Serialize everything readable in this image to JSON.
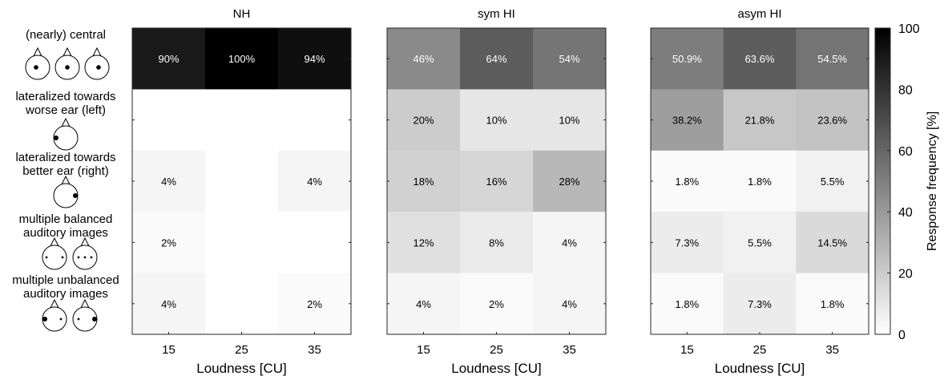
{
  "chart_data": {
    "type": "heatmap",
    "x_categories": [
      "15",
      "25",
      "35"
    ],
    "xlabel": "Loudness [CU]",
    "row_labels": [
      [
        "(nearly) central"
      ],
      [
        "lateralized towards",
        "worse ear (left)"
      ],
      [
        "lateralized towards",
        "better ear (right)"
      ],
      [
        "multiple balanced",
        "auditory images"
      ],
      [
        "multiple unbalanced",
        "auditory images"
      ]
    ],
    "row_icons": [
      "central-head-icons",
      "left-head-icon",
      "right-head-icon",
      "balanced-multiple-head-icons",
      "unbalanced-multiple-head-icons"
    ],
    "panels": [
      {
        "title": "NH",
        "values": [
          [
            90,
            100,
            94
          ],
          [
            0,
            0,
            0
          ],
          [
            4,
            0,
            4
          ],
          [
            2,
            0,
            0
          ],
          [
            4,
            0,
            2
          ]
        ],
        "labels": [
          [
            "90%",
            "100%",
            "94%"
          ],
          [
            "",
            "",
            ""
          ],
          [
            "4%",
            "",
            "4%"
          ],
          [
            "2%",
            "",
            ""
          ],
          [
            "4%",
            "",
            "2%"
          ]
        ]
      },
      {
        "title": "sym HI",
        "values": [
          [
            46,
            64,
            54
          ],
          [
            20,
            10,
            10
          ],
          [
            18,
            16,
            28
          ],
          [
            12,
            8,
            4
          ],
          [
            4,
            2,
            4
          ]
        ],
        "labels": [
          [
            "46%",
            "64%",
            "54%"
          ],
          [
            "20%",
            "10%",
            "10%"
          ],
          [
            "18%",
            "16%",
            "28%"
          ],
          [
            "12%",
            "8%",
            "4%"
          ],
          [
            "4%",
            "2%",
            "4%"
          ]
        ]
      },
      {
        "title": "asym HI",
        "values": [
          [
            50.9,
            63.6,
            54.5
          ],
          [
            38.2,
            21.8,
            23.6
          ],
          [
            1.8,
            1.8,
            5.5
          ],
          [
            7.3,
            5.5,
            14.5
          ],
          [
            1.8,
            7.3,
            1.8
          ]
        ],
        "labels": [
          [
            "50.9%",
            "63.6%",
            "54.5%"
          ],
          [
            "38.2%",
            "21.8%",
            "23.6%"
          ],
          [
            "1.8%",
            "1.8%",
            "5.5%"
          ],
          [
            "7.3%",
            "5.5%",
            "14.5%"
          ],
          [
            "1.8%",
            "7.3%",
            "1.8%"
          ]
        ]
      }
    ],
    "colorbar": {
      "label": "Response frequency [%]",
      "range": [
        0,
        100
      ],
      "ticks": [
        "0",
        "20",
        "40",
        "60",
        "80",
        "100"
      ],
      "colormap": "gray (white = 0, black = 100)"
    },
    "grid": false
  }
}
